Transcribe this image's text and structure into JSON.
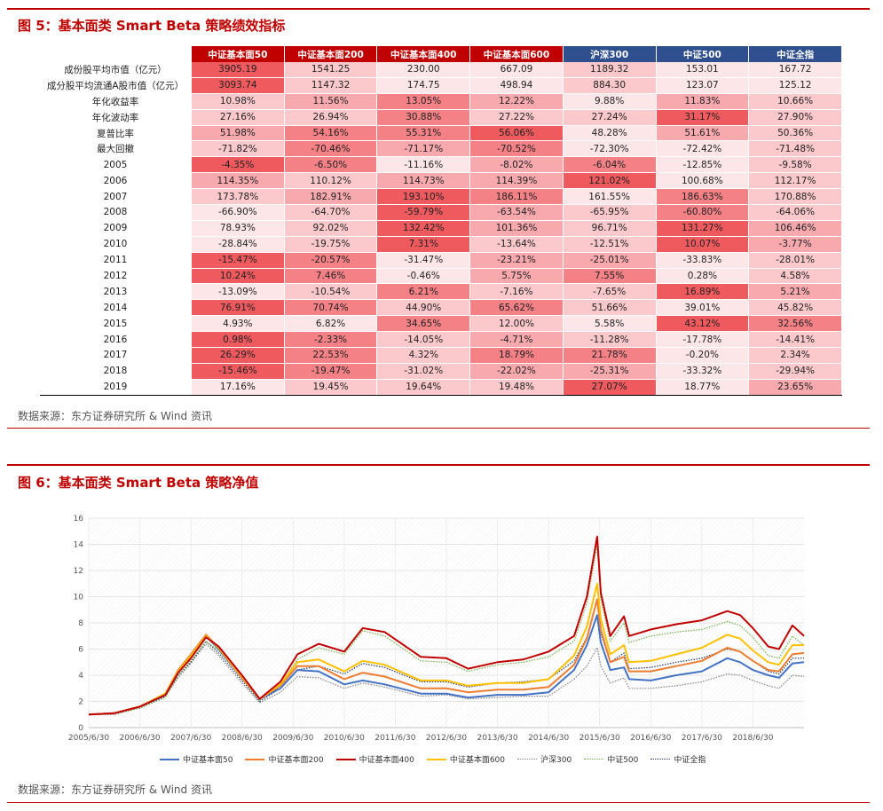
{
  "fig5": {
    "title": "图 5：基本面类 Smart Beta 策略绩效指标",
    "source": "数据来源：东方证券研究所 & Wind 资讯"
  },
  "fig6": {
    "title": "图 6：基本面类 Smart Beta 策略净值",
    "source": "数据来源：东方证券研究所 & Wind 资讯"
  },
  "colors": {
    "brand_red": "#c00000",
    "bench_blue": "#2f4f8f"
  },
  "table": {
    "headers": [
      "中证基本面50",
      "中证基本面200",
      "中证基本面400",
      "中证基本面600",
      "沪深300",
      "中证500",
      "中证全指"
    ],
    "rows": [
      {
        "label": "成份股平均市值（亿元）",
        "values": [
          "3905.19",
          "1541.25",
          "230.00",
          "667.09",
          "1189.32",
          "153.01",
          "167.72"
        ],
        "shade": [
          4,
          1,
          0,
          0,
          1,
          0,
          0
        ]
      },
      {
        "label": "成分股平均流通A股市值（亿元）",
        "values": [
          "3093.74",
          "1147.32",
          "174.75",
          "498.94",
          "884.30",
          "123.07",
          "125.12"
        ],
        "shade": [
          4,
          1,
          0,
          0,
          1,
          0,
          0
        ]
      },
      {
        "label": "年化收益率",
        "values": [
          "10.98%",
          "11.56%",
          "13.05%",
          "12.22%",
          "9.88%",
          "11.83%",
          "10.66%"
        ],
        "shade": [
          1,
          2,
          3,
          2,
          0,
          2,
          1
        ]
      },
      {
        "label": "年化波动率",
        "values": [
          "27.16%",
          "26.94%",
          "30.88%",
          "27.22%",
          "27.24%",
          "31.17%",
          "27.90%"
        ],
        "shade": [
          1,
          1,
          3,
          1,
          1,
          4,
          1
        ]
      },
      {
        "label": "夏普比率",
        "values": [
          "51.98%",
          "54.16%",
          "55.31%",
          "56.06%",
          "48.28%",
          "51.61%",
          "50.36%"
        ],
        "shade": [
          2,
          3,
          3,
          4,
          0,
          2,
          1
        ]
      },
      {
        "label": "最大回撤",
        "values": [
          "-71.82%",
          "-70.46%",
          "-71.17%",
          "-70.52%",
          "-72.30%",
          "-72.42%",
          "-71.48%"
        ],
        "shade": [
          1,
          3,
          2,
          3,
          0,
          0,
          1
        ]
      },
      {
        "label": "2005",
        "values": [
          "-4.35%",
          "-6.50%",
          "-11.16%",
          "-8.02%",
          "-6.04%",
          "-12.85%",
          "-9.58%"
        ],
        "shade": [
          4,
          3,
          0,
          2,
          3,
          0,
          1
        ]
      },
      {
        "label": "2006",
        "values": [
          "114.35%",
          "110.12%",
          "114.73%",
          "114.39%",
          "121.02%",
          "100.68%",
          "112.17%"
        ],
        "shade": [
          2,
          1,
          2,
          2,
          4,
          0,
          1
        ]
      },
      {
        "label": "2007",
        "values": [
          "173.78%",
          "182.91%",
          "193.10%",
          "186.11%",
          "161.55%",
          "186.63%",
          "170.88%"
        ],
        "shade": [
          1,
          2,
          4,
          3,
          0,
          3,
          1
        ]
      },
      {
        "label": "2008",
        "values": [
          "-66.90%",
          "-64.70%",
          "-59.79%",
          "-63.54%",
          "-65.95%",
          "-60.80%",
          "-64.06%"
        ],
        "shade": [
          0,
          1,
          4,
          2,
          1,
          3,
          1
        ]
      },
      {
        "label": "2009",
        "values": [
          "78.93%",
          "92.02%",
          "132.42%",
          "101.36%",
          "96.71%",
          "131.27%",
          "106.46%"
        ],
        "shade": [
          0,
          1,
          4,
          2,
          1,
          4,
          2
        ]
      },
      {
        "label": "2010",
        "values": [
          "-28.84%",
          "-19.75%",
          "7.31%",
          "-13.64%",
          "-12.51%",
          "10.07%",
          "-3.77%"
        ],
        "shade": [
          0,
          1,
          4,
          1,
          1,
          4,
          2
        ]
      },
      {
        "label": "2011",
        "values": [
          "-15.47%",
          "-20.57%",
          "-31.47%",
          "-23.21%",
          "-25.01%",
          "-33.83%",
          "-28.01%"
        ],
        "shade": [
          4,
          3,
          0,
          2,
          2,
          0,
          1
        ]
      },
      {
        "label": "2012",
        "values": [
          "10.24%",
          "7.46%",
          "-0.46%",
          "5.75%",
          "7.55%",
          "0.28%",
          "4.58%"
        ],
        "shade": [
          4,
          3,
          0,
          2,
          3,
          0,
          1
        ]
      },
      {
        "label": "2013",
        "values": [
          "-13.09%",
          "-10.54%",
          "6.21%",
          "-7.16%",
          "-7.65%",
          "16.89%",
          "5.21%"
        ],
        "shade": [
          0,
          1,
          3,
          1,
          1,
          4,
          2
        ]
      },
      {
        "label": "2014",
        "values": [
          "76.91%",
          "70.74%",
          "44.90%",
          "65.62%",
          "51.66%",
          "39.01%",
          "45.82%"
        ],
        "shade": [
          4,
          3,
          1,
          3,
          1,
          0,
          1
        ]
      },
      {
        "label": "2015",
        "values": [
          "4.93%",
          "6.82%",
          "34.65%",
          "12.00%",
          "5.58%",
          "43.12%",
          "32.56%"
        ],
        "shade": [
          0,
          0,
          3,
          1,
          0,
          4,
          3
        ]
      },
      {
        "label": "2016",
        "values": [
          "0.98%",
          "-2.33%",
          "-14.05%",
          "-4.71%",
          "-11.28%",
          "-17.78%",
          "-14.41%"
        ],
        "shade": [
          4,
          3,
          1,
          2,
          1,
          0,
          1
        ]
      },
      {
        "label": "2017",
        "values": [
          "26.29%",
          "22.53%",
          "4.32%",
          "18.79%",
          "21.78%",
          "-0.20%",
          "2.34%"
        ],
        "shade": [
          4,
          3,
          1,
          3,
          3,
          0,
          1
        ]
      },
      {
        "label": "2018",
        "values": [
          "-15.46%",
          "-19.47%",
          "-31.02%",
          "-22.02%",
          "-25.31%",
          "-33.32%",
          "-29.94%"
        ],
        "shade": [
          4,
          3,
          1,
          2,
          2,
          0,
          1
        ]
      },
      {
        "label": "2019",
        "values": [
          "17.16%",
          "19.45%",
          "19.64%",
          "19.48%",
          "27.07%",
          "18.77%",
          "23.65%"
        ],
        "shade": [
          0,
          1,
          1,
          1,
          4,
          0,
          2
        ]
      }
    ]
  },
  "chart_data": {
    "type": "line",
    "title": "",
    "xlabel": "",
    "ylabel": "",
    "ylim": [
      0,
      16
    ],
    "yticks": [
      0,
      2,
      4,
      6,
      8,
      10,
      12,
      14,
      16
    ],
    "xticks": [
      "2005/6/30",
      "2006/6/30",
      "2007/6/30",
      "2008/6/30",
      "2009/6/30",
      "2010/6/30",
      "2011/6/30",
      "2012/6/30",
      "2013/6/30",
      "2014/6/30",
      "2015/6/30",
      "2016/6/30",
      "2017/6/30",
      "2018/6/30"
    ],
    "grid": true,
    "legend_position": "bottom",
    "x": [
      "2005/6/30",
      "2005/12/30",
      "2006/6/30",
      "2006/12/30",
      "2007/3/30",
      "2007/6/30",
      "2007/10/16",
      "2008/1/15",
      "2008/6/30",
      "2008/11/4",
      "2009/3/30",
      "2009/7/31",
      "2009/12/30",
      "2010/6/30",
      "2010/11/10",
      "2011/4/15",
      "2011/12/30",
      "2012/6/30",
      "2012/12/3",
      "2013/6/30",
      "2013/12/30",
      "2014/6/30",
      "2014/12/30",
      "2015/3/30",
      "2015/6/12",
      "2015/7/8",
      "2015/9/15",
      "2015/12/22",
      "2016/1/28",
      "2016/6/30",
      "2016/12/30",
      "2017/6/30",
      "2017/12/30",
      "2018/3/30",
      "2018/6/30",
      "2018/10/18",
      "2019/1/3",
      "2019/4/8",
      "2019/6/30"
    ],
    "series": [
      {
        "name": "中证基本面50",
        "color": "#4472c4",
        "style": "solid",
        "values": [
          1.0,
          1.1,
          1.6,
          2.6,
          4.3,
          5.5,
          7.0,
          6.0,
          3.8,
          2.2,
          3.0,
          4.4,
          4.3,
          3.3,
          3.6,
          3.3,
          2.6,
          2.6,
          2.3,
          2.5,
          2.5,
          2.7,
          4.4,
          6.3,
          8.6,
          6.5,
          4.4,
          4.6,
          3.7,
          3.6,
          4.0,
          4.3,
          5.3,
          5.0,
          4.4,
          4.0,
          3.8,
          4.9,
          5.0
        ]
      },
      {
        "name": "中证基本面200",
        "color": "#ed7d31",
        "style": "solid",
        "values": [
          1.0,
          1.1,
          1.6,
          2.6,
          4.4,
          5.6,
          7.1,
          6.1,
          3.8,
          2.2,
          3.2,
          4.7,
          4.7,
          3.7,
          4.2,
          3.9,
          3.0,
          3.0,
          2.7,
          2.9,
          2.9,
          3.1,
          4.8,
          6.8,
          9.8,
          7.5,
          5.0,
          5.4,
          4.3,
          4.3,
          4.7,
          5.1,
          6.1,
          5.8,
          5.1,
          4.4,
          4.3,
          5.6,
          5.7
        ]
      },
      {
        "name": "中证基本面400",
        "color": "#c00000",
        "style": "solid",
        "values": [
          1.0,
          1.1,
          1.6,
          2.5,
          4.2,
          5.3,
          6.9,
          6.2,
          4.0,
          2.2,
          3.5,
          5.6,
          6.4,
          5.8,
          7.6,
          7.3,
          5.4,
          5.3,
          4.5,
          5.0,
          5.2,
          5.8,
          7.0,
          10.0,
          14.6,
          10.3,
          7.0,
          8.5,
          7.0,
          7.5,
          7.9,
          8.2,
          8.9,
          8.6,
          7.6,
          6.2,
          6.0,
          7.8,
          7.0
        ]
      },
      {
        "name": "中证基本面600",
        "color": "#ffc000",
        "style": "solid",
        "values": [
          1.0,
          1.1,
          1.6,
          2.6,
          4.3,
          5.5,
          7.0,
          6.1,
          3.9,
          2.2,
          3.3,
          5.0,
          5.2,
          4.3,
          5.1,
          4.8,
          3.6,
          3.6,
          3.2,
          3.4,
          3.4,
          3.7,
          5.5,
          7.7,
          11.0,
          8.3,
          5.6,
          6.3,
          5.0,
          5.1,
          5.6,
          6.1,
          7.1,
          6.8,
          5.9,
          5.0,
          4.8,
          6.3,
          6.3
        ]
      },
      {
        "name": "沪深300",
        "color": "#808080",
        "style": "dotted",
        "values": [
          1.0,
          1.0,
          1.5,
          2.4,
          3.8,
          4.9,
          6.4,
          5.5,
          3.4,
          1.9,
          2.7,
          3.9,
          3.8,
          3.0,
          3.4,
          3.1,
          2.4,
          2.5,
          2.2,
          2.3,
          2.4,
          2.4,
          3.7,
          4.7,
          6.1,
          4.7,
          3.4,
          3.8,
          3.0,
          3.0,
          3.2,
          3.5,
          4.1,
          4.0,
          3.6,
          3.2,
          3.0,
          4.0,
          3.9
        ]
      },
      {
        "name": "中证500",
        "color": "#70ad47",
        "style": "dotted",
        "values": [
          1.0,
          1.1,
          1.5,
          2.3,
          4.0,
          5.1,
          6.6,
          5.9,
          3.8,
          2.1,
          3.3,
          5.2,
          6.1,
          5.6,
          7.4,
          7.0,
          5.1,
          5.0,
          4.3,
          4.8,
          5.0,
          5.4,
          6.6,
          9.5,
          14.0,
          9.8,
          6.6,
          8.0,
          6.5,
          7.0,
          7.3,
          7.5,
          8.1,
          7.8,
          6.9,
          5.5,
          5.3,
          7.0,
          6.3
        ]
      },
      {
        "name": "中证全指",
        "color": "#1f3864",
        "style": "dotted",
        "values": [
          1.0,
          1.1,
          1.5,
          2.4,
          4.0,
          5.0,
          6.6,
          5.7,
          3.6,
          2.0,
          3.0,
          4.4,
          4.7,
          4.1,
          4.9,
          4.6,
          3.5,
          3.5,
          3.1,
          3.4,
          3.5,
          3.7,
          5.1,
          6.9,
          9.8,
          7.2,
          5.0,
          5.7,
          4.5,
          4.6,
          5.0,
          5.3,
          6.0,
          5.8,
          5.1,
          4.3,
          4.1,
          5.3,
          5.3
        ]
      }
    ]
  }
}
